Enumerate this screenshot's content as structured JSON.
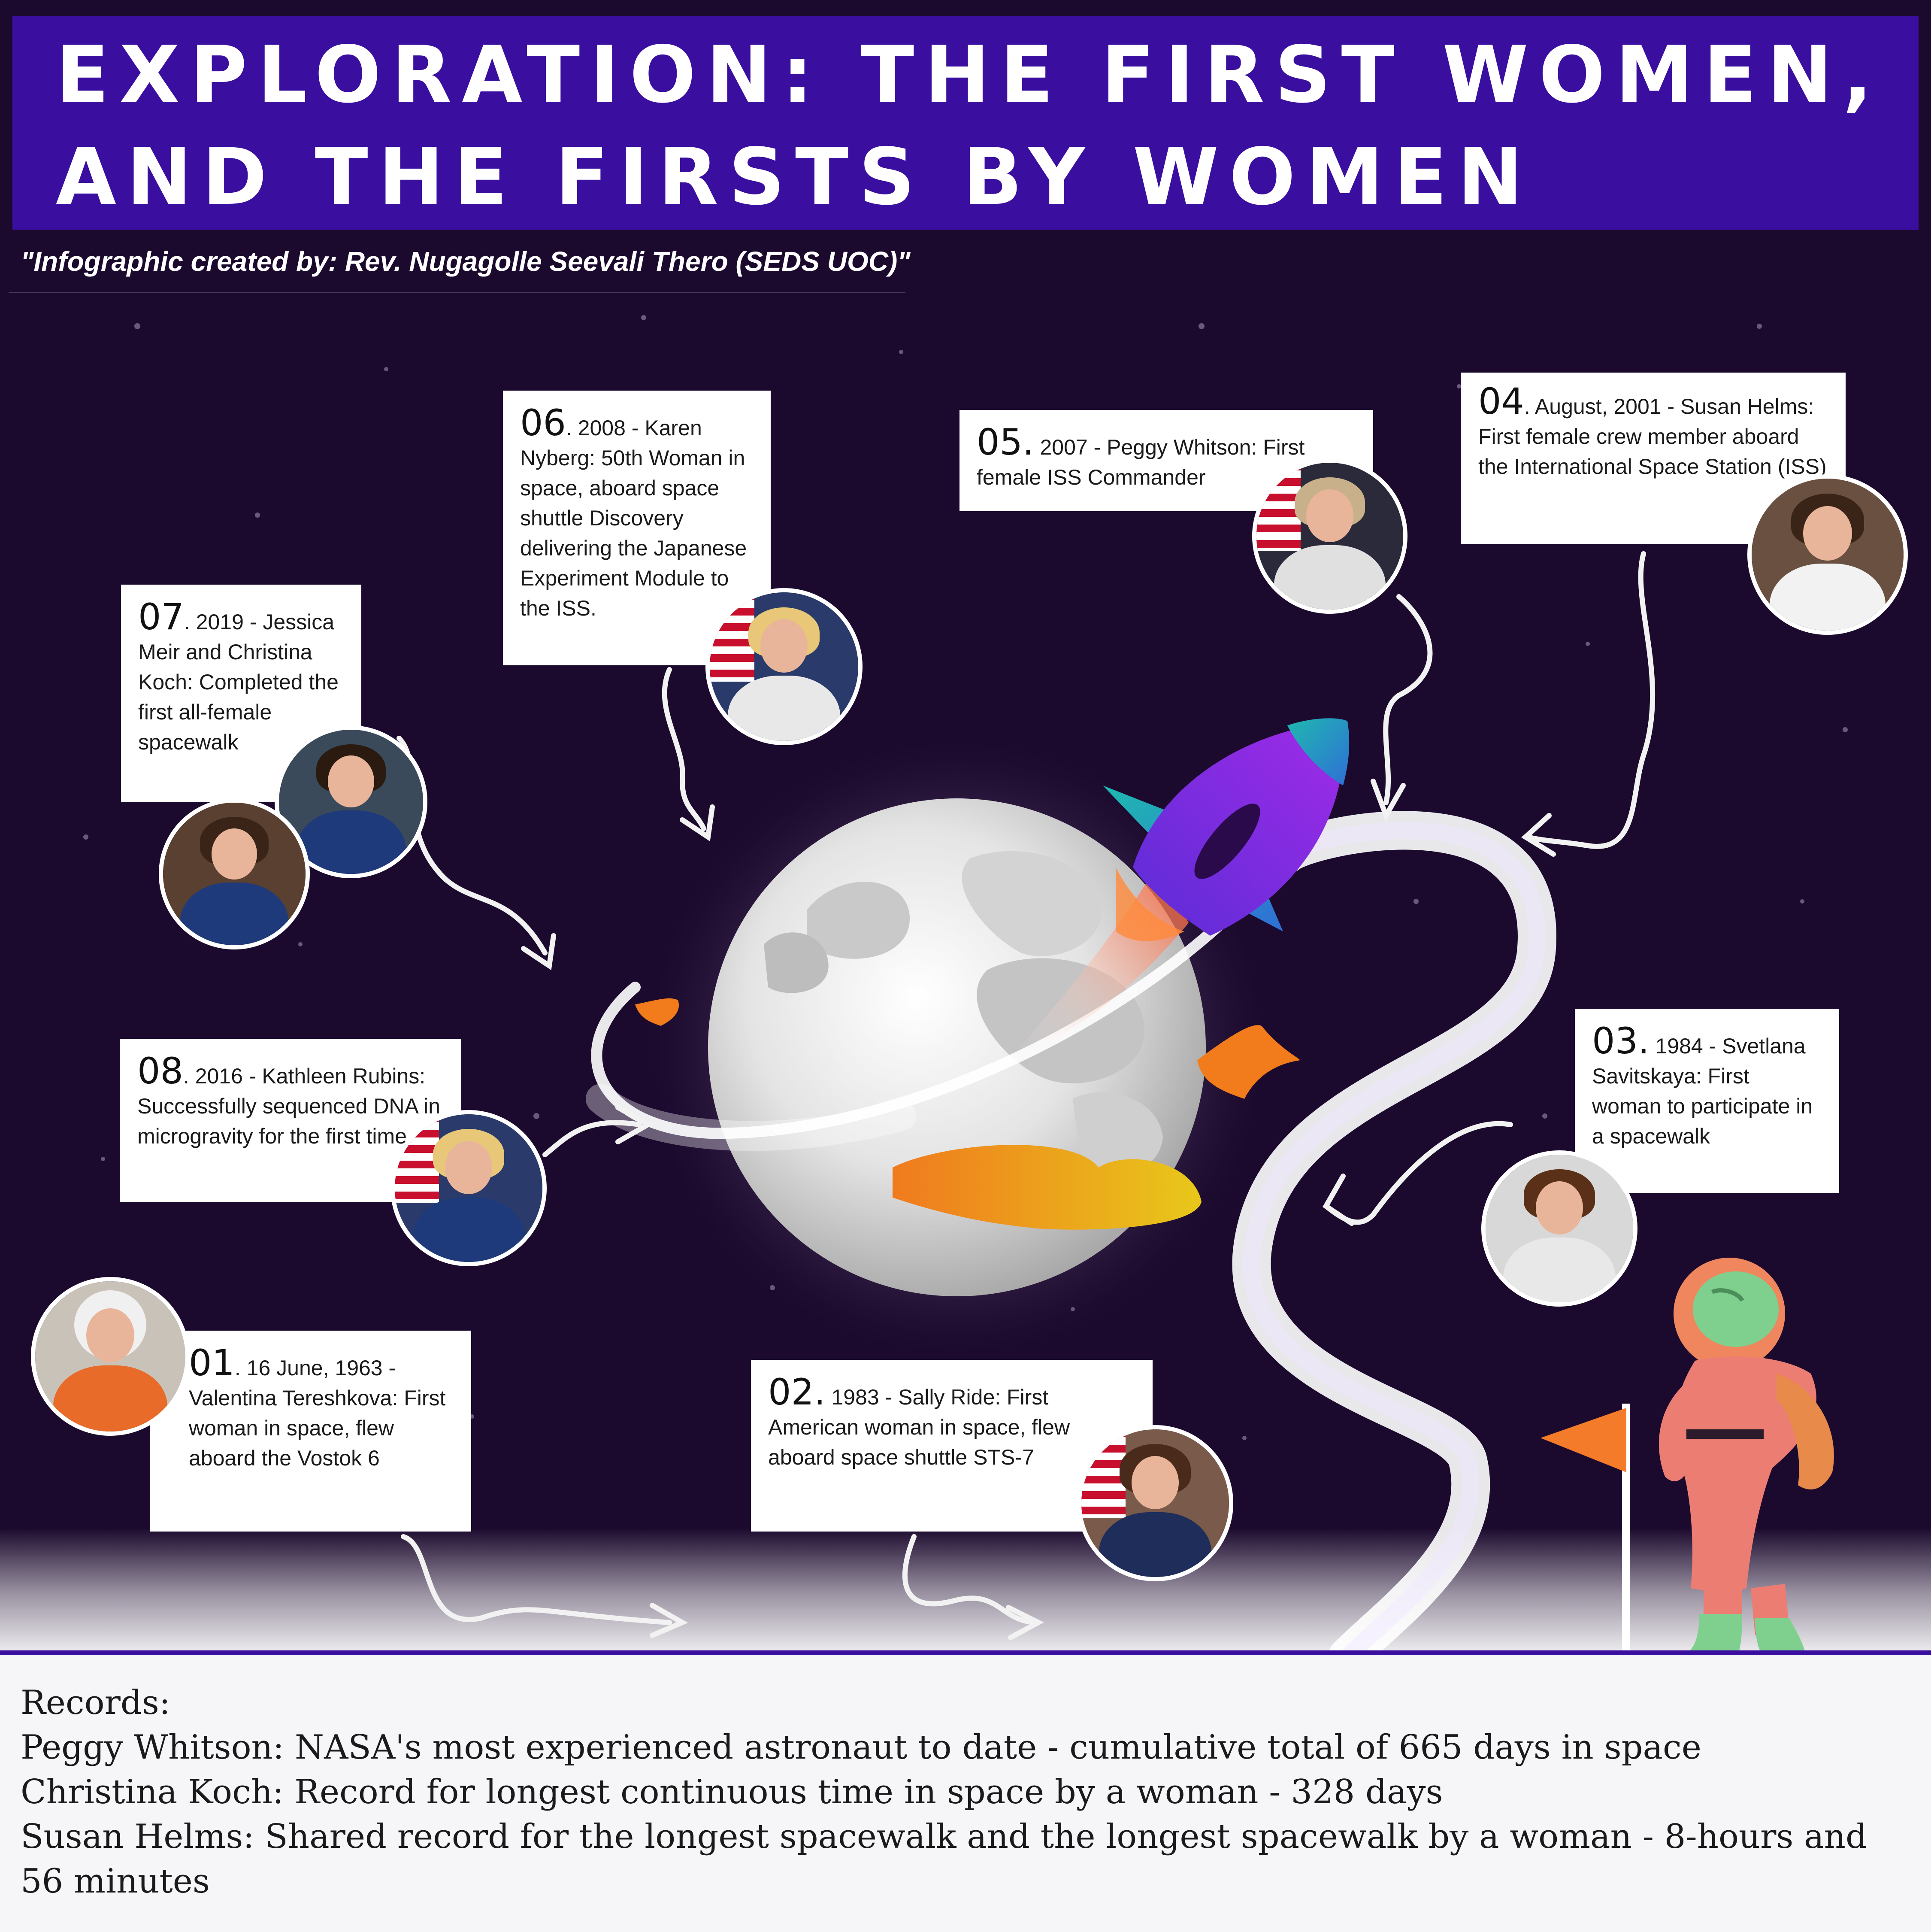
{
  "header": {
    "title": "EXPLORATION: THE FIRST WOMEN, AND THE FIRSTS BY WOMEN",
    "credit": "\"Infographic created by: Rev. Nugagolle Seevali Thero (SEDS UOC)\""
  },
  "milestones": [
    {
      "num": "01",
      "text": ". 16 June, 1963 - Valentina Tereshkova: First woman in space, flew aboard the Vostok 6"
    },
    {
      "num": "02.",
      "text": " 1983 - Sally Ride: First American woman in space, flew aboard space shuttle STS-7"
    },
    {
      "num": "03.",
      "text": " 1984 - Svetlana Savitskaya: First woman to participate in a spacewalk"
    },
    {
      "num": "04",
      "text": ". August, 2001 - Susan Helms: First female crew member aboard the International Space Station (ISS)"
    },
    {
      "num": "05.",
      "text": " 2007 - Peggy Whitson: First female ISS Commander"
    },
    {
      "num": "06",
      "text": ". 2008 -  Karen Nyberg: 50th Woman in space, aboard space shuttle Discovery delivering the Japanese Experiment Module to the ISS."
    },
    {
      "num": "07",
      "text": ". 2019 - Jessica Meir and Christina Koch: Completed the first all-female spacewalk"
    },
    {
      "num": "08",
      "text": ". 2016 - Kathleen Rubins: Successfully sequenced DNA in microgravity for the first time."
    }
  ],
  "records": {
    "heading": "Records:",
    "lines": [
      "Peggy Whitson: NASA's most experienced astronaut to date - cumulative total of 665 days in space",
      "Christina Koch: Record for longest continuous time in space by a woman - 328 days",
      "Susan Helms: Shared record for the longest spacewalk and the longest spacewalk by a woman - 8-hours and 56 minutes"
    ]
  },
  "icons": [
    "moon-illustration",
    "rocket-icon",
    "astronaut-icon",
    "flag-icon",
    "arrow-icon"
  ],
  "colors": {
    "header": "#3a0fa0",
    "space": "#1c0a2e",
    "rocket": "#8a2be2",
    "rocket_fins": "#1fb8b0",
    "astronaut_suit": "#ec7d73",
    "astronaut_helmet": "#7fd08e",
    "flag": "#f47b2a",
    "moon": "#e6e6e6",
    "records_bg": "#f6f6f9"
  }
}
